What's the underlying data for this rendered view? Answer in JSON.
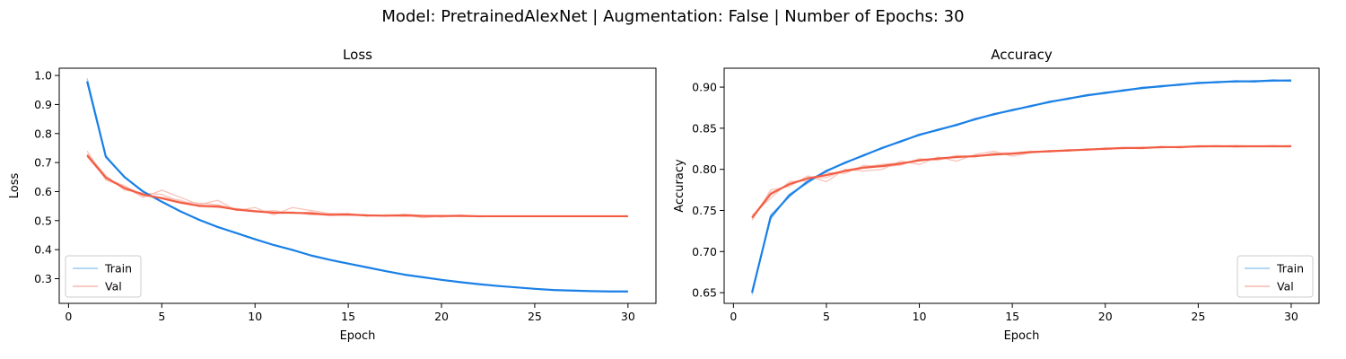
{
  "figure": {
    "suptitle": "Model: PretrainedAlexNet | Augmentation: False | Number of Epochs: 30"
  },
  "colors": {
    "train": "#1a80e6",
    "val": "#f25c43",
    "train_faint": "#9ccaf2",
    "val_faint": "#f7b8ad"
  },
  "chart_data": [
    {
      "type": "line",
      "title": "Loss",
      "xlabel": "Epoch",
      "ylabel": "Loss",
      "xlim": [
        -0.5,
        31.5
      ],
      "ylim": [
        0.215,
        1.025
      ],
      "xticks": [
        0,
        5,
        10,
        15,
        20,
        25,
        30
      ],
      "yticks": [
        0.3,
        0.4,
        0.5,
        0.6,
        0.7,
        0.8,
        0.9,
        1.0
      ],
      "ytick_labels": [
        "0.3",
        "0.4",
        "0.5",
        "0.6",
        "0.7",
        "0.8",
        "0.9",
        "1.0"
      ],
      "grid": false,
      "legend": {
        "position": "lower-left",
        "entries": [
          "Train",
          "Val"
        ]
      },
      "x": [
        1,
        2,
        3,
        4,
        5,
        6,
        7,
        8,
        9,
        10,
        11,
        12,
        13,
        14,
        15,
        16,
        17,
        18,
        19,
        20,
        21,
        22,
        23,
        24,
        25,
        26,
        27,
        28,
        29,
        30
      ],
      "series": [
        {
          "name": "Train",
          "values": [
            0.98,
            0.72,
            0.65,
            0.6,
            0.565,
            0.532,
            0.503,
            0.478,
            0.457,
            0.436,
            0.416,
            0.399,
            0.38,
            0.365,
            0.352,
            0.339,
            0.326,
            0.314,
            0.305,
            0.296,
            0.288,
            0.281,
            0.275,
            0.27,
            0.265,
            0.261,
            0.259,
            0.257,
            0.256,
            0.256
          ]
        },
        {
          "name": "Val",
          "values": [
            0.725,
            0.648,
            0.612,
            0.59,
            0.577,
            0.562,
            0.551,
            0.549,
            0.538,
            0.532,
            0.527,
            0.527,
            0.525,
            0.52,
            0.521,
            0.518,
            0.517,
            0.518,
            0.516,
            0.516,
            0.516,
            0.515,
            0.515,
            0.515,
            0.515,
            0.515,
            0.515,
            0.515,
            0.515,
            0.515
          ]
        }
      ],
      "faint_runs": [
        {
          "name": "Train",
          "values": [
            [
              0.99,
              0.725,
              0.648,
              0.602,
              0.564,
              0.533,
              0.502,
              0.479,
              0.456,
              0.437,
              0.415,
              0.4,
              0.379,
              0.366,
              0.351,
              0.34,
              0.325,
              0.315,
              0.304,
              0.297,
              0.287,
              0.282,
              0.274,
              0.271,
              0.264,
              0.262,
              0.258,
              0.258,
              0.255,
              0.257
            ],
            [
              0.975,
              0.718,
              0.652,
              0.598,
              0.566,
              0.531,
              0.504,
              0.477,
              0.458,
              0.435,
              0.417,
              0.398,
              0.381,
              0.364,
              0.353,
              0.338,
              0.327,
              0.313,
              0.306,
              0.295,
              0.289,
              0.28,
              0.276,
              0.269,
              0.266,
              0.26,
              0.26,
              0.256,
              0.257,
              0.255
            ]
          ]
        },
        {
          "name": "Val",
          "values": [
            [
              0.74,
              0.64,
              0.615,
              0.58,
              0.605,
              0.58,
              0.555,
              0.57,
              0.535,
              0.545,
              0.52,
              0.545,
              0.535,
              0.525,
              0.525,
              0.515,
              0.52,
              0.52,
              0.51,
              0.515,
              0.52,
              0.515,
              0.515,
              0.515,
              0.515,
              0.515,
              0.515,
              0.515,
              0.515,
              0.515
            ],
            [
              0.73,
              0.655,
              0.605,
              0.595,
              0.59,
              0.565,
              0.56,
              0.555,
              0.54,
              0.53,
              0.535,
              0.525,
              0.53,
              0.52,
              0.52,
              0.52,
              0.515,
              0.522,
              0.518,
              0.512,
              0.518,
              0.513,
              0.516,
              0.514,
              0.515,
              0.516,
              0.514,
              0.515,
              0.515,
              0.515
            ],
            [
              0.72,
              0.645,
              0.62,
              0.585,
              0.58,
              0.57,
              0.548,
              0.545,
              0.542,
              0.535,
              0.53,
              0.53,
              0.52,
              0.522,
              0.518,
              0.52,
              0.518,
              0.515,
              0.516,
              0.518,
              0.515,
              0.516,
              0.514,
              0.515,
              0.516,
              0.515,
              0.515,
              0.514,
              0.515,
              0.515
            ]
          ]
        }
      ]
    },
    {
      "type": "line",
      "title": "Accuracy",
      "xlabel": "Epoch",
      "ylabel": "Accuracy",
      "xlim": [
        -0.5,
        31.5
      ],
      "ylim": [
        0.637,
        0.923
      ],
      "xticks": [
        0,
        5,
        10,
        15,
        20,
        25,
        30
      ],
      "yticks": [
        0.65,
        0.7,
        0.75,
        0.8,
        0.85,
        0.9
      ],
      "ytick_labels": [
        "0.65",
        "0.70",
        "0.75",
        "0.80",
        "0.85",
        "0.90"
      ],
      "grid": false,
      "legend": {
        "position": "lower-right",
        "entries": [
          "Train",
          "Val"
        ]
      },
      "x": [
        1,
        2,
        3,
        4,
        5,
        6,
        7,
        8,
        9,
        10,
        11,
        12,
        13,
        14,
        15,
        16,
        17,
        18,
        19,
        20,
        21,
        22,
        23,
        24,
        25,
        26,
        27,
        28,
        29,
        30
      ],
      "series": [
        {
          "name": "Train",
          "values": [
            0.65,
            0.742,
            0.768,
            0.785,
            0.798,
            0.808,
            0.817,
            0.826,
            0.834,
            0.842,
            0.848,
            0.854,
            0.861,
            0.867,
            0.872,
            0.877,
            0.882,
            0.886,
            0.89,
            0.893,
            0.896,
            0.899,
            0.901,
            0.903,
            0.905,
            0.906,
            0.907,
            0.907,
            0.908,
            0.908
          ]
        },
        {
          "name": "Val",
          "values": [
            0.741,
            0.77,
            0.782,
            0.789,
            0.793,
            0.798,
            0.802,
            0.804,
            0.807,
            0.811,
            0.813,
            0.815,
            0.816,
            0.818,
            0.819,
            0.821,
            0.822,
            0.823,
            0.824,
            0.825,
            0.826,
            0.826,
            0.827,
            0.827,
            0.828,
            0.828,
            0.828,
            0.828,
            0.828,
            0.828
          ]
        }
      ],
      "faint_runs": [
        {
          "name": "Train",
          "values": [
            [
              0.647,
              0.745,
              0.766,
              0.787,
              0.797,
              0.809,
              0.816,
              0.827,
              0.833,
              0.843,
              0.847,
              0.855,
              0.86,
              0.868,
              0.871,
              0.878,
              0.881,
              0.887,
              0.889,
              0.894,
              0.895,
              0.9,
              0.9,
              0.904,
              0.904,
              0.907,
              0.906,
              0.908,
              0.907,
              0.909
            ],
            [
              0.653,
              0.739,
              0.77,
              0.783,
              0.799,
              0.807,
              0.818,
              0.825,
              0.835,
              0.841,
              0.849,
              0.853,
              0.862,
              0.866,
              0.873,
              0.876,
              0.883,
              0.885,
              0.891,
              0.892,
              0.897,
              0.898,
              0.902,
              0.902,
              0.906,
              0.905,
              0.908,
              0.906,
              0.909,
              0.907
            ]
          ]
        },
        {
          "name": "Val",
          "values": [
            [
              0.738,
              0.775,
              0.779,
              0.792,
              0.785,
              0.8,
              0.798,
              0.8,
              0.81,
              0.806,
              0.815,
              0.81,
              0.818,
              0.822,
              0.816,
              0.82,
              0.823,
              0.822,
              0.825,
              0.824,
              0.826,
              0.825,
              0.828,
              0.826,
              0.828,
              0.829,
              0.827,
              0.828,
              0.828,
              0.829
            ],
            [
              0.744,
              0.765,
              0.785,
              0.786,
              0.796,
              0.795,
              0.805,
              0.803,
              0.805,
              0.813,
              0.811,
              0.817,
              0.815,
              0.82,
              0.82,
              0.822,
              0.821,
              0.824,
              0.823,
              0.826,
              0.825,
              0.827,
              0.826,
              0.828,
              0.827,
              0.828,
              0.829,
              0.828,
              0.828,
              0.828
            ],
            [
              0.742,
              0.772,
              0.781,
              0.79,
              0.79,
              0.799,
              0.803,
              0.806,
              0.808,
              0.81,
              0.814,
              0.814,
              0.817,
              0.817,
              0.82,
              0.82,
              0.822,
              0.823,
              0.824,
              0.825,
              0.826,
              0.826,
              0.827,
              0.827,
              0.828,
              0.828,
              0.828,
              0.828,
              0.829,
              0.828
            ]
          ]
        }
      ]
    }
  ]
}
